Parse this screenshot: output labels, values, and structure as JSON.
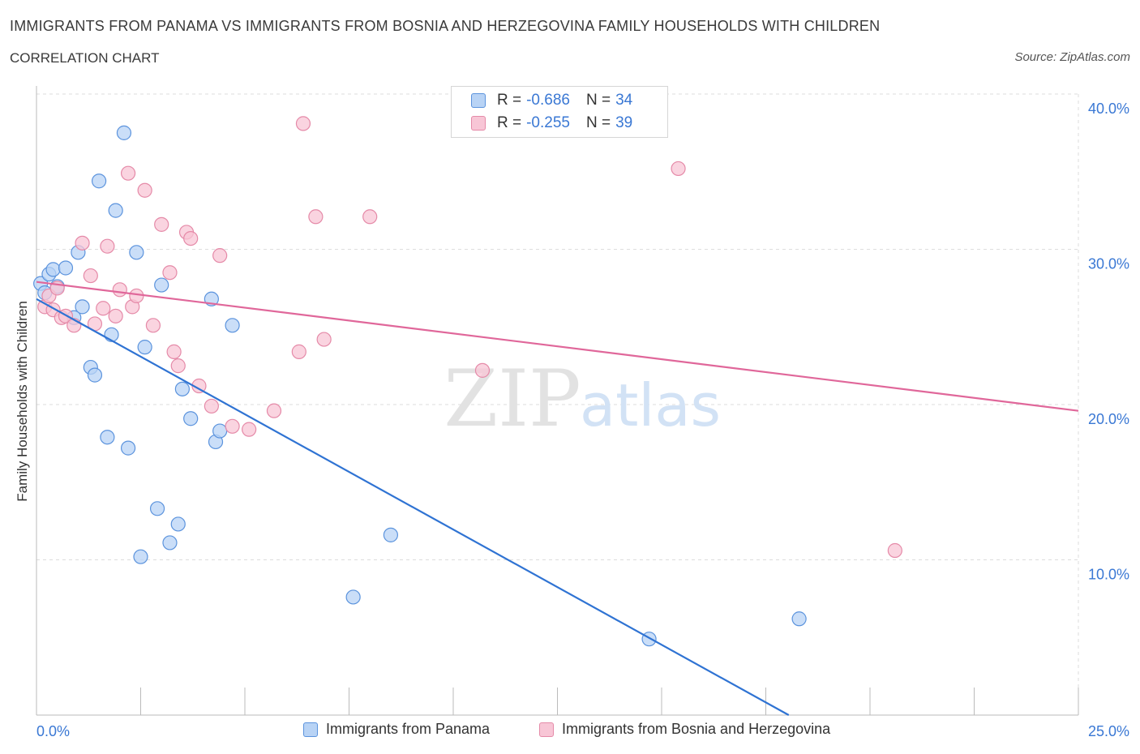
{
  "title": "IMMIGRANTS FROM PANAMA VS IMMIGRANTS FROM BOSNIA AND HERZEGOVINA FAMILY HOUSEHOLDS WITH CHILDREN",
  "subtitle": "CORRELATION CHART",
  "source": "Source: ZipAtlas.com",
  "watermark": {
    "zip": "ZIP",
    "atlas": "atlas"
  },
  "legend": {
    "panama": {
      "r_label": "R = ",
      "r_value": "-0.686",
      "n_label": "N = ",
      "n_value": "34"
    },
    "bosnia": {
      "r_label": "R = ",
      "r_value": "-0.255",
      "n_label": "N = ",
      "n_value": "39"
    }
  },
  "colors": {
    "panama_fill": "#b8d3f5",
    "panama_stroke": "#5b93dd",
    "panama_line": "#2f73d3",
    "bosnia_fill": "#f8c6d6",
    "bosnia_stroke": "#e58aa8",
    "bosnia_line": "#e0679a",
    "axis_text": "#3a78d4",
    "grid": "#dddddd"
  },
  "chart_data": {
    "type": "scatter",
    "title": "IMMIGRANTS FROM PANAMA VS IMMIGRANTS FROM BOSNIA AND HERZEGOVINA FAMILY HOUSEHOLDS WITH CHILDREN",
    "xlabel": "",
    "ylabel": "Family Households with Children",
    "xlim": [
      0,
      25
    ],
    "ylim": [
      0,
      40
    ],
    "x_tick_labels": [
      "0.0%",
      "25.0%"
    ],
    "y_ticks": [
      10,
      20,
      30,
      40
    ],
    "y_tick_labels": [
      "10.0%",
      "20.0%",
      "30.0%",
      "40.0%"
    ],
    "grid": true,
    "series": [
      {
        "name": "Immigrants from Panama",
        "r": -0.686,
        "n": 34,
        "points": [
          [
            0.1,
            27.8
          ],
          [
            0.2,
            27.2
          ],
          [
            0.3,
            28.4
          ],
          [
            0.4,
            28.7
          ],
          [
            0.5,
            27.6
          ],
          [
            0.7,
            28.8
          ],
          [
            0.9,
            25.6
          ],
          [
            1.0,
            29.8
          ],
          [
            1.1,
            26.3
          ],
          [
            1.3,
            22.4
          ],
          [
            1.4,
            21.9
          ],
          [
            1.5,
            34.4
          ],
          [
            1.7,
            17.9
          ],
          [
            1.8,
            24.5
          ],
          [
            1.9,
            32.5
          ],
          [
            2.1,
            37.5
          ],
          [
            2.2,
            17.2
          ],
          [
            2.4,
            29.8
          ],
          [
            2.5,
            10.2
          ],
          [
            2.6,
            23.7
          ],
          [
            2.9,
            13.3
          ],
          [
            3.0,
            27.7
          ],
          [
            3.2,
            11.1
          ],
          [
            3.4,
            12.3
          ],
          [
            3.5,
            21.0
          ],
          [
            3.7,
            19.1
          ],
          [
            4.2,
            26.8
          ],
          [
            4.3,
            17.6
          ],
          [
            4.4,
            18.3
          ],
          [
            4.7,
            25.1
          ],
          [
            8.5,
            11.6
          ],
          [
            7.6,
            7.6
          ],
          [
            14.7,
            4.9
          ],
          [
            18.3,
            6.2
          ]
        ],
        "trend": {
          "x0": 0,
          "y0": 26.8,
          "x1": 18.05,
          "y1": 0
        }
      },
      {
        "name": "Immigrants from Bosnia and Herzegovina",
        "r": -0.255,
        "n": 39,
        "points": [
          [
            0.2,
            26.3
          ],
          [
            0.3,
            27.0
          ],
          [
            0.4,
            26.1
          ],
          [
            0.5,
            27.5
          ],
          [
            0.6,
            25.6
          ],
          [
            0.7,
            25.7
          ],
          [
            0.9,
            25.1
          ],
          [
            1.1,
            30.4
          ],
          [
            1.3,
            28.3
          ],
          [
            1.4,
            25.2
          ],
          [
            1.6,
            26.2
          ],
          [
            1.7,
            30.2
          ],
          [
            1.9,
            25.7
          ],
          [
            2.0,
            27.4
          ],
          [
            2.2,
            34.9
          ],
          [
            2.3,
            26.3
          ],
          [
            2.4,
            27.0
          ],
          [
            2.6,
            33.8
          ],
          [
            2.8,
            25.1
          ],
          [
            3.0,
            31.6
          ],
          [
            3.2,
            28.5
          ],
          [
            3.3,
            23.4
          ],
          [
            3.4,
            22.5
          ],
          [
            3.6,
            31.1
          ],
          [
            3.7,
            30.7
          ],
          [
            3.9,
            21.2
          ],
          [
            4.2,
            19.9
          ],
          [
            4.4,
            29.6
          ],
          [
            4.7,
            18.6
          ],
          [
            5.1,
            18.4
          ],
          [
            5.7,
            19.6
          ],
          [
            6.3,
            23.4
          ],
          [
            6.4,
            38.1
          ],
          [
            6.7,
            32.1
          ],
          [
            6.9,
            24.2
          ],
          [
            8.0,
            32.1
          ],
          [
            10.7,
            22.2
          ],
          [
            15.4,
            35.2
          ],
          [
            20.6,
            10.6
          ]
        ],
        "trend": {
          "x0": 0,
          "y0": 27.9,
          "x1": 25,
          "y1": 19.6
        }
      }
    ]
  },
  "bottom_legend": {
    "panama_label": "Immigrants from Panama",
    "bosnia_label": "Immigrants from Bosnia and Herzegovina"
  }
}
